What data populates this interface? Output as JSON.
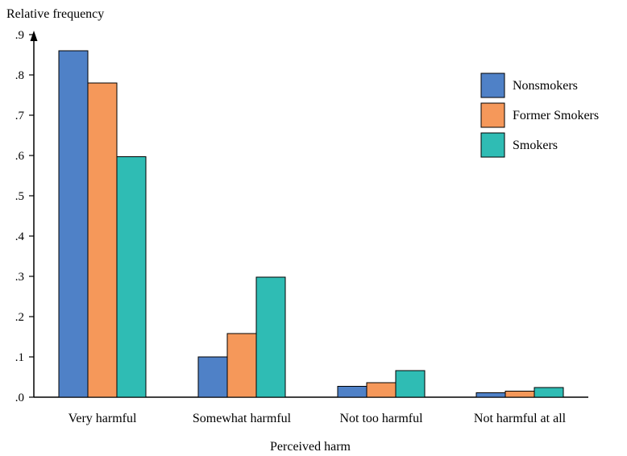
{
  "chart_data": {
    "type": "bar",
    "ylabel": "Relative frequency",
    "xlabel": "Perceived harm",
    "categories": [
      "Very harmful",
      "Somewhat harmful",
      "Not too harmful",
      "Not harmful at all"
    ],
    "series": [
      {
        "name": "Nonsmokers",
        "color": "#4f81c7",
        "values": [
          0.86,
          0.1,
          0.027,
          0.011
        ]
      },
      {
        "name": "Former Smokers",
        "color": "#f5985a",
        "values": [
          0.78,
          0.158,
          0.036,
          0.015
        ]
      },
      {
        "name": "Smokers",
        "color": "#2fbcb4",
        "values": [
          0.597,
          0.298,
          0.066,
          0.024
        ]
      }
    ],
    "yticks": [
      ".0",
      ".1",
      ".2",
      ".3",
      ".4",
      ".5",
      ".6",
      ".7",
      ".8",
      ".9"
    ],
    "ylim": [
      0,
      0.9
    ],
    "grid": false,
    "legend_position": "top-right"
  }
}
